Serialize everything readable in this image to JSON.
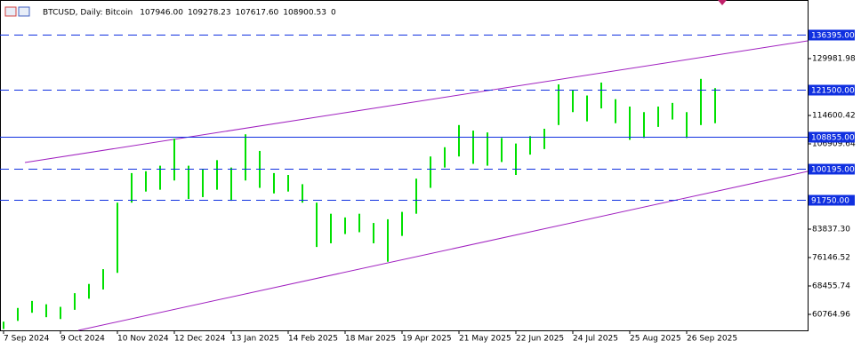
{
  "chart_data": {
    "type": "hlbars",
    "title": "BTCUSD, Daily:  Bitcoin",
    "quote": [
      "107946.00",
      "109278.23",
      "107617.60",
      "108900.53",
      "0"
    ],
    "categories": [
      "7 Sep 2024",
      null,
      null,
      null,
      "9 Oct 2024",
      null,
      null,
      null,
      "10 Nov 2024",
      null,
      null,
      null,
      "12 Dec 2024",
      null,
      null,
      null,
      "13 Jan 2025",
      null,
      null,
      null,
      "14 Feb 2025",
      null,
      null,
      null,
      "18 Mar 2025",
      null,
      null,
      null,
      "19 Apr 2025",
      null,
      null,
      null,
      "21 May 2025",
      null,
      null,
      null,
      "22 Jun 2025",
      null,
      null,
      null,
      "24 Jul 2025",
      null,
      null,
      null,
      "25 Aug 2025",
      null,
      null,
      null,
      "26 Sep 2025",
      null,
      null
    ],
    "high": [
      58800,
      62500,
      64400,
      63500,
      62800,
      66500,
      69000,
      73000,
      91000,
      99000,
      99500,
      101000,
      108300,
      101000,
      100000,
      102500,
      100500,
      109500,
      105000,
      99000,
      98500,
      96000,
      91000,
      88000,
      87000,
      88000,
      85500,
      86500,
      88500,
      97500,
      103500,
      106000,
      112000,
      110500,
      110000,
      108500,
      107000,
      109000,
      111000,
      123000,
      121500,
      120000,
      123500,
      119000,
      117000,
      115500,
      117000,
      118000,
      115500,
      124500,
      122000
    ],
    "low": [
      56800,
      59000,
      61200,
      60000,
      59500,
      62000,
      65000,
      67500,
      72000,
      91000,
      94000,
      94500,
      97000,
      92000,
      92500,
      94500,
      91500,
      97000,
      95000,
      93500,
      94000,
      91000,
      79000,
      80000,
      82500,
      83000,
      80000,
      75000,
      82000,
      88000,
      95000,
      100500,
      103500,
      101500,
      101000,
      102000,
      98500,
      104000,
      105500,
      112000,
      115500,
      113000,
      116500,
      112500,
      108000,
      108500,
      111500,
      113500,
      108500,
      112000,
      112500
    ],
    "color": "#00e000",
    "ylim": [
      56438,
      145844
    ],
    "yticks": [
      129981.98,
      114600.42,
      106909.64,
      {
        "value": 83837.3,
        "label": "83837.30"
      },
      76146.52,
      68455.74,
      60764.96
    ],
    "levels": [
      {
        "value": 136395,
        "label": "136395.00",
        "style": "dashed"
      },
      {
        "value": 121500,
        "label": "121500.00",
        "style": "dashed"
      },
      {
        "value": 108855,
        "label": "108855.00",
        "style": "solid"
      },
      {
        "value": 100195,
        "label": "100195.00",
        "style": "dashed"
      },
      {
        "value": 91750,
        "label": "91750.00",
        "style": "dashed"
      }
    ],
    "level_color": "#1030e0"
  }
}
